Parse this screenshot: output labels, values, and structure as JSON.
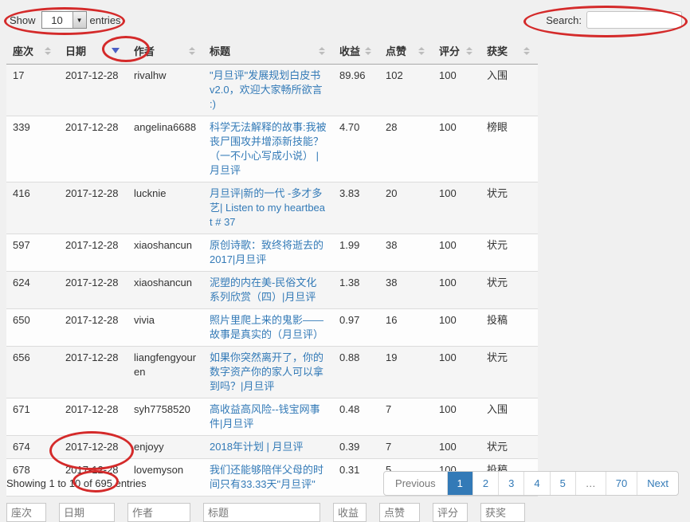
{
  "controls": {
    "show_label": "Show",
    "entries_label": "entries",
    "page_length": "10",
    "search_label": "Search:",
    "search_value": ""
  },
  "table": {
    "columns": [
      {
        "label": "座次",
        "sort": "both"
      },
      {
        "label": "日期",
        "sort": "desc"
      },
      {
        "label": "作者",
        "sort": "both"
      },
      {
        "label": "标题",
        "sort": "both"
      },
      {
        "label": "收益",
        "sort": "both"
      },
      {
        "label": "点赞",
        "sort": "both"
      },
      {
        "label": "评分",
        "sort": "both"
      },
      {
        "label": "获奖",
        "sort": "both"
      }
    ],
    "rows": [
      {
        "rank": "17",
        "date": "2017-12-28",
        "author": "rivalhw",
        "title": "\"月旦评\"发展规划白皮书 v2.0，欢迎大家畅所欲言 :)",
        "revenue": "89.96",
        "likes": "102",
        "score": "100",
        "award": "入围"
      },
      {
        "rank": "339",
        "date": "2017-12-28",
        "author": "angelina6688",
        "title": "科学无法解释的故事:我被丧尸围攻并增添新技能？（一不小心写成小说） | 月旦评",
        "revenue": "4.70",
        "likes": "28",
        "score": "100",
        "award": "榜眼"
      },
      {
        "rank": "416",
        "date": "2017-12-28",
        "author": "lucknie",
        "title": "月旦评|新的一代 -多才多艺| Listen to my heartbeat # 37",
        "revenue": "3.83",
        "likes": "20",
        "score": "100",
        "award": "状元"
      },
      {
        "rank": "597",
        "date": "2017-12-28",
        "author": "xiaoshancun",
        "title": "原创诗歌：致终将逝去的2017|月旦评",
        "revenue": "1.99",
        "likes": "38",
        "score": "100",
        "award": "状元"
      },
      {
        "rank": "624",
        "date": "2017-12-28",
        "author": "xiaoshancun",
        "title": "泥塑的内在美-民俗文化系列欣赏（四）|月旦评",
        "revenue": "1.38",
        "likes": "38",
        "score": "100",
        "award": "状元"
      },
      {
        "rank": "650",
        "date": "2017-12-28",
        "author": "vivia",
        "title": "照片里爬上来的鬼影——故事是真实的（月旦评）",
        "revenue": "0.97",
        "likes": "16",
        "score": "100",
        "award": "投稿"
      },
      {
        "rank": "656",
        "date": "2017-12-28",
        "author": "liangfengyouren",
        "title": "如果你突然离开了，你的数字资产你的家人可以拿到吗？|月旦评",
        "revenue": "0.88",
        "likes": "19",
        "score": "100",
        "award": "状元"
      },
      {
        "rank": "671",
        "date": "2017-12-28",
        "author": "syh7758520",
        "title": "高收益高风险--钱宝网事件|月旦评",
        "revenue": "0.48",
        "likes": "7",
        "score": "100",
        "award": "入围"
      },
      {
        "rank": "674",
        "date": "2017-12-28",
        "author": "enjoyy",
        "title": "2018年计划 | 月旦评",
        "revenue": "0.39",
        "likes": "7",
        "score": "100",
        "award": "状元"
      },
      {
        "rank": "678",
        "date": "2017-12-28",
        "author": "lovemyson",
        "title": "我们还能够陪伴父母的时间只有33.33天\"月旦评\"",
        "revenue": "0.31",
        "likes": "5",
        "score": "100",
        "award": "投稿"
      }
    ],
    "filter_placeholders": [
      "座次",
      "日期",
      "作者",
      "标题",
      "收益",
      "点赞",
      "评分",
      "获奖"
    ]
  },
  "footer": {
    "info": "Showing 1 to 10 of 695 entries",
    "pagination": [
      {
        "label": "Previous",
        "state": "disabled"
      },
      {
        "label": "1",
        "state": "active"
      },
      {
        "label": "2",
        "state": "normal"
      },
      {
        "label": "3",
        "state": "normal"
      },
      {
        "label": "4",
        "state": "normal"
      },
      {
        "label": "5",
        "state": "normal"
      },
      {
        "label": "…",
        "state": "disabled"
      },
      {
        "label": "70",
        "state": "normal"
      },
      {
        "label": "Next",
        "state": "normal"
      }
    ]
  },
  "colors": {
    "link_accent": "#337ab7",
    "pagination_active_bg": "#337ab7",
    "sort_active_arrow": "#4a5ec4",
    "annotation_red": "#d42a2a",
    "page_background": "#f0f0f0"
  },
  "icons": {
    "select_dropdown": "dropdown-arrow-icon",
    "sort_inactive": "sort-both-icon",
    "sort_active": "sort-desc-icon"
  }
}
